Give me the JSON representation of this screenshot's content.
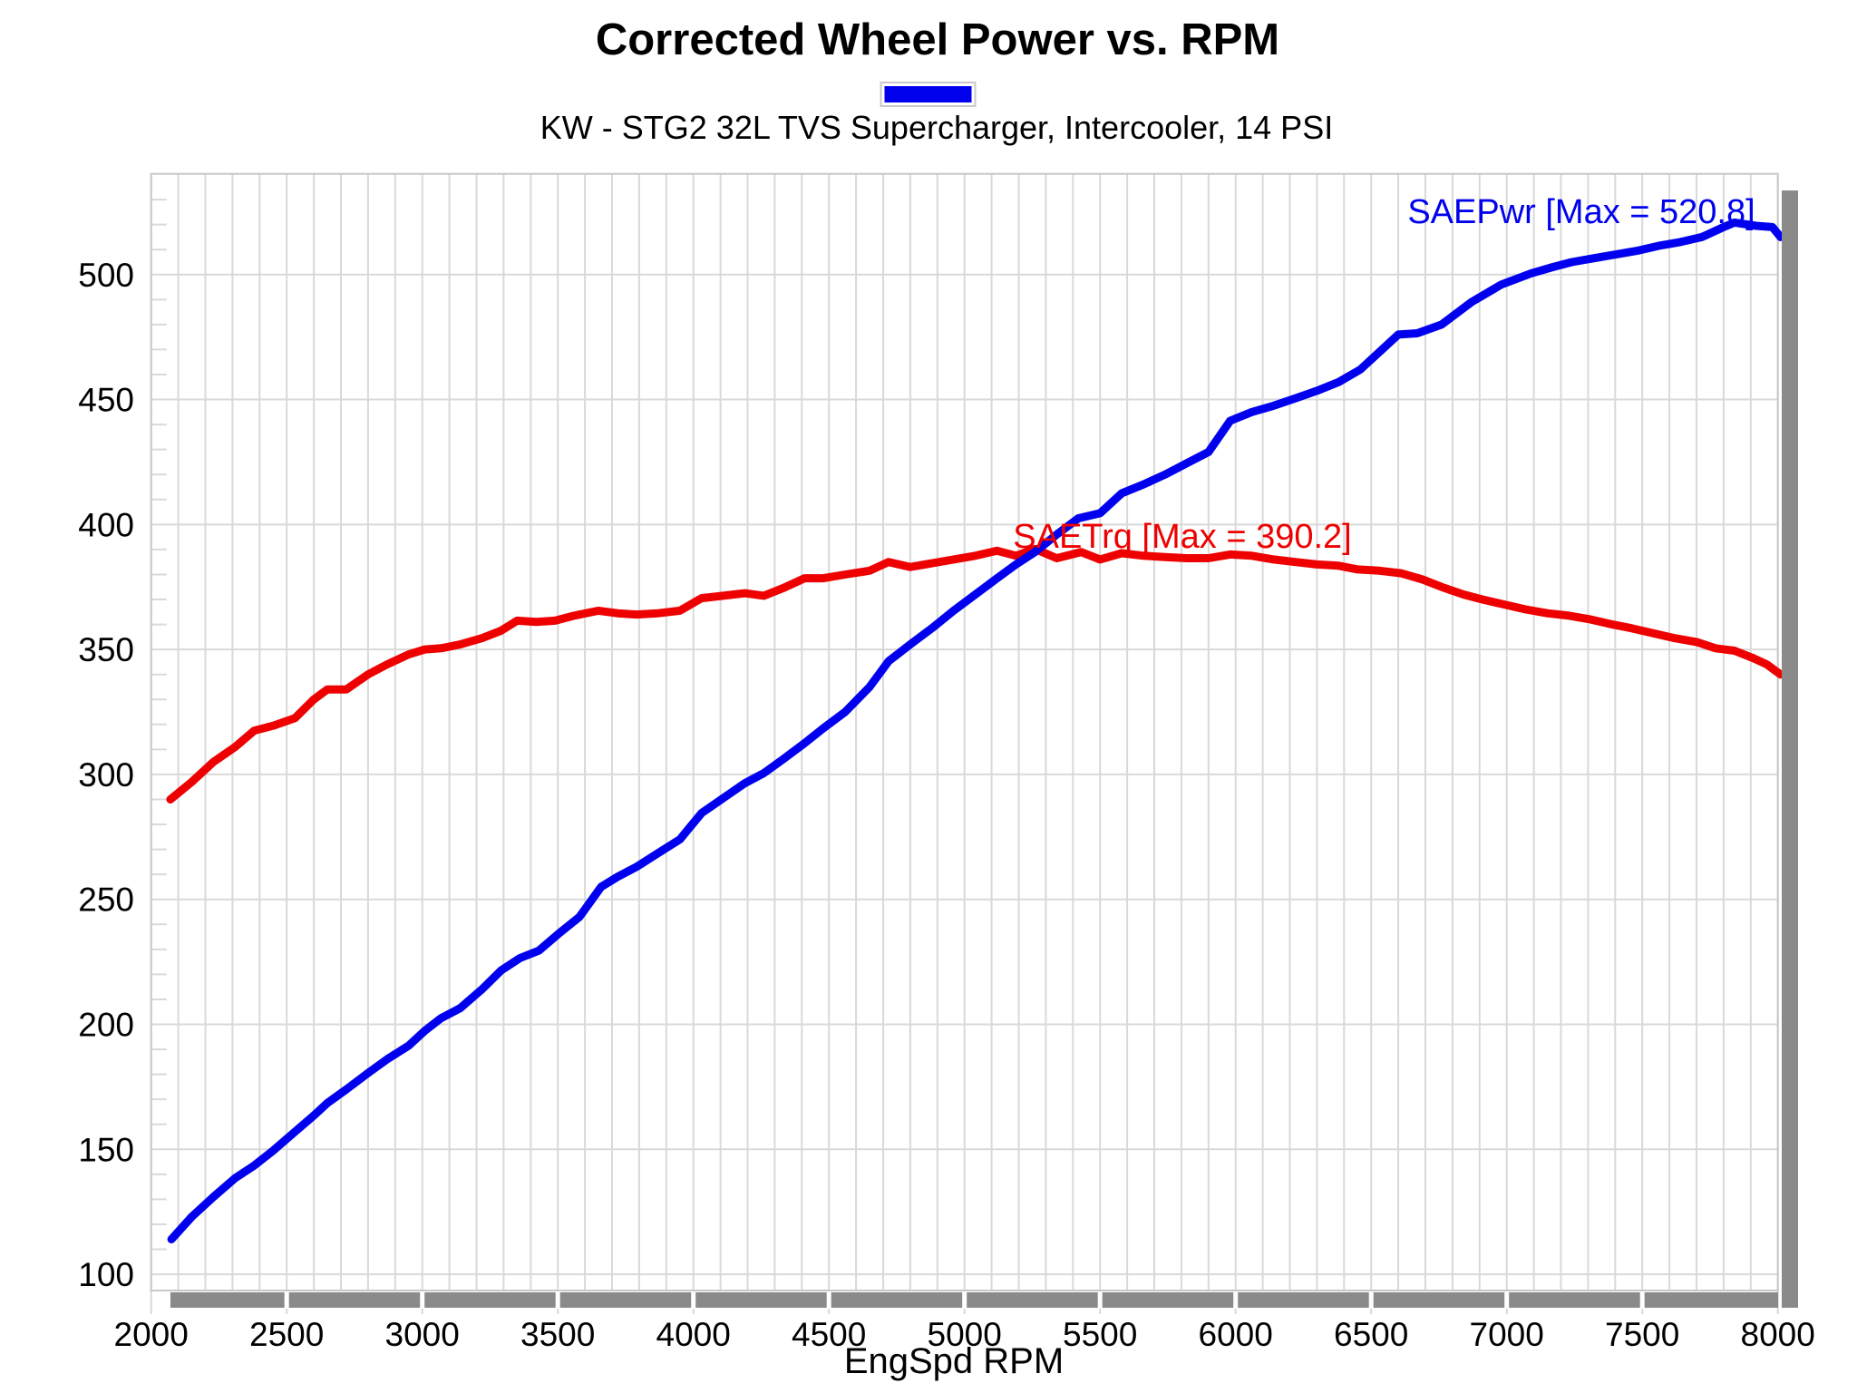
{
  "header": {
    "title": "Corrected Wheel Power vs. RPM",
    "subtitle": "KW - STG2 32L TVS Supercharger, Intercooler, 14 PSI"
  },
  "legend": {
    "swatch_color": "#0000EE",
    "swatch_border_color": "#C9C9C9"
  },
  "ui": {
    "grid_color": "#D9D9D9",
    "plot_border_color": "#C7C7C7",
    "scrollbar_color": "#8A8A8A",
    "text_color": "#000000",
    "background_color": "#FFFFFF"
  },
  "chart_data": {
    "type": "line",
    "title": "Corrected Wheel Power vs. RPM",
    "subtitle": "KW - STG2 32L TVS Supercharger, Intercooler, 14 PSI",
    "xlabel": "EngSpd RPM",
    "ylabel": "",
    "xlim": [
      2000,
      8000
    ],
    "ylim": [
      93.5,
      540.3
    ],
    "grid": true,
    "x_tick_labels": [
      "2000",
      "2500",
      "3000",
      "3500",
      "4000",
      "4500",
      "5000",
      "5500",
      "6000",
      "6500",
      "7000",
      "7500",
      "8000"
    ],
    "y_tick_labels": [
      "100",
      "150",
      "200",
      "250",
      "300",
      "350",
      "400",
      "450",
      "500"
    ],
    "x_minor_grid_step": 100,
    "y_minor_tick_step": 10,
    "series": [
      {
        "name": "SAETrq",
        "annotation": "SAETrq [Max = 390.2]",
        "max": 390.2,
        "color": "#EE0000",
        "points": [
          [
            2071,
            290
          ],
          [
            2150,
            297
          ],
          [
            2230,
            305
          ],
          [
            2310,
            311
          ],
          [
            2380,
            317.5
          ],
          [
            2450,
            319.5
          ],
          [
            2530,
            322.5
          ],
          [
            2600,
            330
          ],
          [
            2650,
            334
          ],
          [
            2720,
            334
          ],
          [
            2800,
            340
          ],
          [
            2870,
            344
          ],
          [
            2950,
            348
          ],
          [
            3010,
            350
          ],
          [
            3070,
            350.5
          ],
          [
            3140,
            352
          ],
          [
            3220,
            354.5
          ],
          [
            3290,
            357.5
          ],
          [
            3350,
            361.5
          ],
          [
            3420,
            361
          ],
          [
            3490,
            361.5
          ],
          [
            3560,
            363.5
          ],
          [
            3650,
            365.5
          ],
          [
            3720,
            364.5
          ],
          [
            3790,
            364
          ],
          [
            3870,
            364.5
          ],
          [
            3950,
            365.5
          ],
          [
            4030,
            370.5
          ],
          [
            4110,
            371.5
          ],
          [
            4190,
            372.5
          ],
          [
            4260,
            371.5
          ],
          [
            4330,
            374.5
          ],
          [
            4410,
            378.5
          ],
          [
            4480,
            378.5
          ],
          [
            4560,
            380
          ],
          [
            4650,
            381.5
          ],
          [
            4720,
            385
          ],
          [
            4800,
            383
          ],
          [
            4880,
            384.5
          ],
          [
            4960,
            386
          ],
          [
            5040,
            387.5
          ],
          [
            5120,
            389.5
          ],
          [
            5190,
            387.5
          ],
          [
            5260,
            390.2
          ],
          [
            5340,
            386.5
          ],
          [
            5430,
            389
          ],
          [
            5500,
            386
          ],
          [
            5580,
            388.5
          ],
          [
            5660,
            387.5
          ],
          [
            5740,
            387
          ],
          [
            5820,
            386.5
          ],
          [
            5900,
            386.5
          ],
          [
            5980,
            388
          ],
          [
            6060,
            387.5
          ],
          [
            6140,
            386
          ],
          [
            6220,
            385
          ],
          [
            6300,
            384
          ],
          [
            6380,
            383.5
          ],
          [
            6450,
            382
          ],
          [
            6530,
            381.5
          ],
          [
            6610,
            380.5
          ],
          [
            6690,
            378
          ],
          [
            6760,
            375
          ],
          [
            6840,
            372
          ],
          [
            6910,
            370
          ],
          [
            6990,
            368
          ],
          [
            7070,
            366
          ],
          [
            7150,
            364.5
          ],
          [
            7230,
            363.5
          ],
          [
            7310,
            362
          ],
          [
            7390,
            360
          ],
          [
            7460,
            358.5
          ],
          [
            7540,
            356.5
          ],
          [
            7620,
            354.5
          ],
          [
            7700,
            353
          ],
          [
            7770,
            350.5
          ],
          [
            7840,
            349.5
          ],
          [
            7910,
            346.5
          ],
          [
            7960,
            344
          ],
          [
            8010,
            340
          ]
        ]
      },
      {
        "name": "SAEPwr",
        "annotation": "SAEPwr [Max = 520.8]",
        "max": 520.8,
        "color": "#0000EE",
        "points": [
          [
            2075,
            114
          ],
          [
            2150,
            123
          ],
          [
            2230,
            131
          ],
          [
            2310,
            138.5
          ],
          [
            2380,
            143.5
          ],
          [
            2450,
            149.5
          ],
          [
            2530,
            157
          ],
          [
            2600,
            163.5
          ],
          [
            2650,
            168.5
          ],
          [
            2720,
            174
          ],
          [
            2800,
            180.5
          ],
          [
            2870,
            186
          ],
          [
            2950,
            191.5
          ],
          [
            3010,
            197.5
          ],
          [
            3070,
            202.5
          ],
          [
            3140,
            206.5
          ],
          [
            3220,
            214
          ],
          [
            3290,
            221.5
          ],
          [
            3360,
            226.5
          ],
          [
            3430,
            229.5
          ],
          [
            3500,
            236
          ],
          [
            3580,
            243
          ],
          [
            3660,
            255
          ],
          [
            3720,
            259
          ],
          [
            3790,
            263
          ],
          [
            3870,
            268.5
          ],
          [
            3950,
            274
          ],
          [
            4030,
            284.5
          ],
          [
            4110,
            290.5
          ],
          [
            4190,
            296.5
          ],
          [
            4260,
            300.5
          ],
          [
            4330,
            306
          ],
          [
            4410,
            312.5
          ],
          [
            4480,
            318.5
          ],
          [
            4560,
            325
          ],
          [
            4650,
            335
          ],
          [
            4720,
            345.3
          ],
          [
            4800,
            352
          ],
          [
            4880,
            358.5
          ],
          [
            4960,
            365.5
          ],
          [
            5040,
            372
          ],
          [
            5120,
            378.5
          ],
          [
            5190,
            384
          ],
          [
            5260,
            389
          ],
          [
            5340,
            396
          ],
          [
            5420,
            402.5
          ],
          [
            5500,
            404.5
          ],
          [
            5580,
            412.5
          ],
          [
            5660,
            416
          ],
          [
            5740,
            420
          ],
          [
            5820,
            424.5
          ],
          [
            5900,
            429
          ],
          [
            5980,
            441.5
          ],
          [
            6060,
            445
          ],
          [
            6140,
            447.5
          ],
          [
            6220,
            450.5
          ],
          [
            6300,
            453.5
          ],
          [
            6380,
            457
          ],
          [
            6460,
            462
          ],
          [
            6540,
            470
          ],
          [
            6600,
            476
          ],
          [
            6670,
            476.5
          ],
          [
            6760,
            480
          ],
          [
            6870,
            489
          ],
          [
            6980,
            496
          ],
          [
            7090,
            500.5
          ],
          [
            7170,
            503
          ],
          [
            7240,
            505
          ],
          [
            7320,
            506.5
          ],
          [
            7400,
            508
          ],
          [
            7480,
            509.5
          ],
          [
            7560,
            511.5
          ],
          [
            7640,
            513
          ],
          [
            7720,
            515
          ],
          [
            7800,
            519
          ],
          [
            7840,
            520.8
          ],
          [
            7920,
            519.5
          ],
          [
            7980,
            519
          ],
          [
            8010,
            515
          ]
        ]
      }
    ],
    "legend_position": "top-center"
  }
}
